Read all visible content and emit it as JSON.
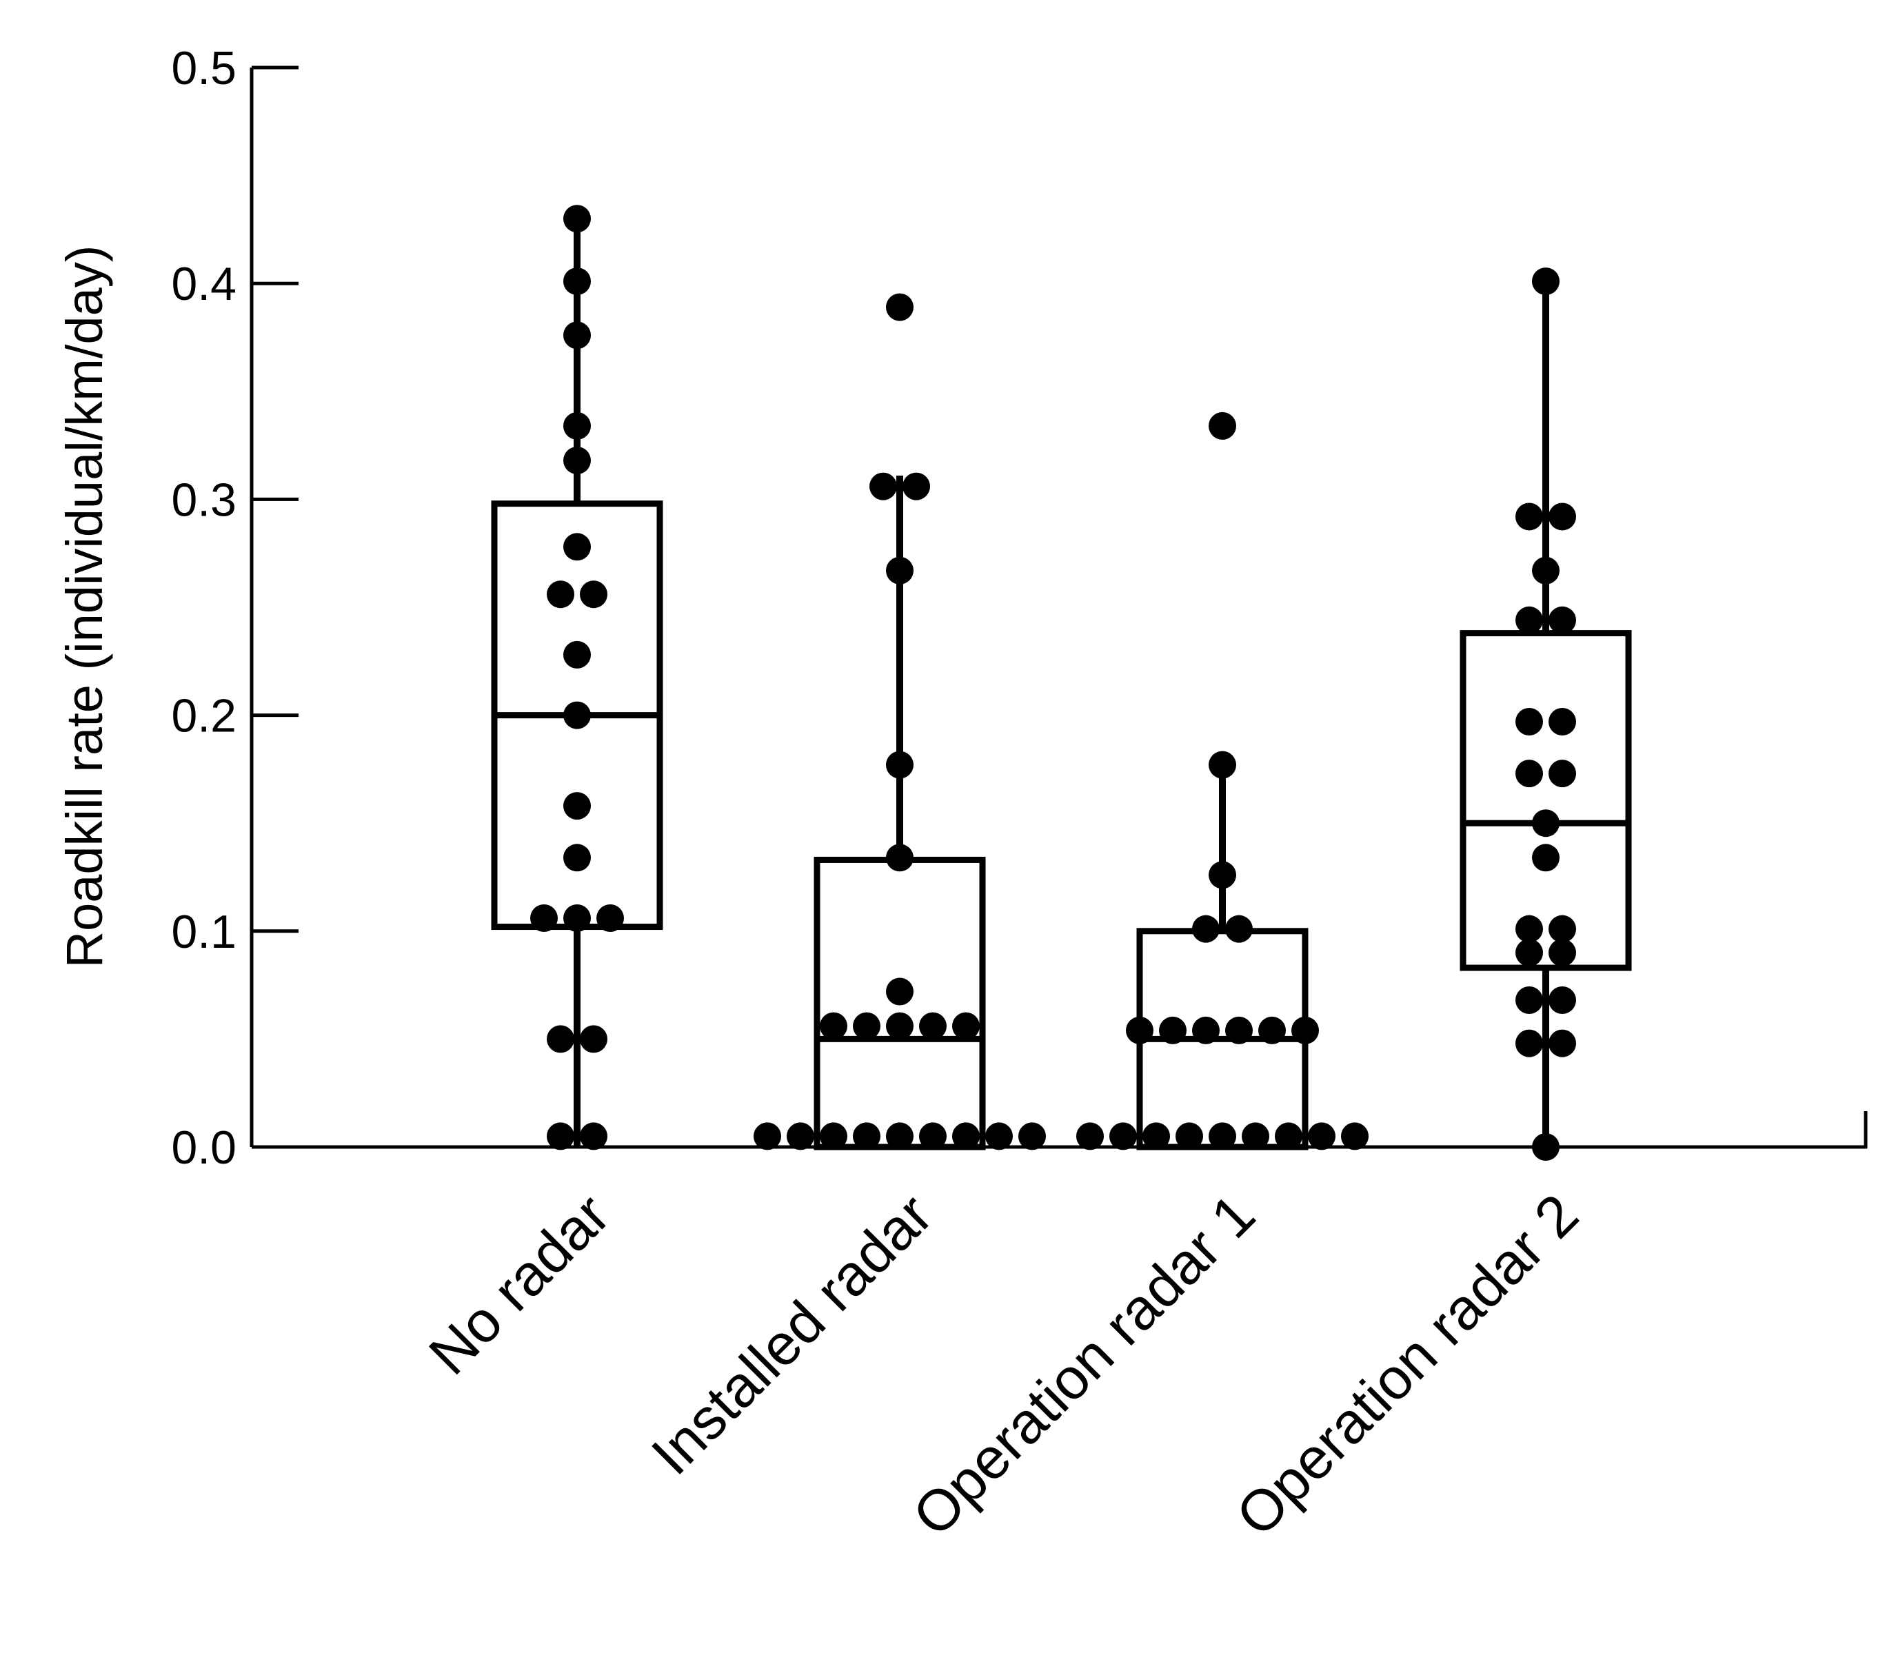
{
  "chart_data": {
    "type": "box",
    "title": "",
    "xlabel": "",
    "ylabel": "Roadkill rate (individual/km/day)",
    "ylim": [
      0,
      0.5
    ],
    "yticks": [
      "0.0",
      "0.1",
      "0.2",
      "0.3",
      "0.4",
      "0.5"
    ],
    "grid": false,
    "legend": "none",
    "colors": {
      "stroke": "#000000",
      "points": "#000000",
      "background": "#ffffff"
    },
    "categories": [
      "No radar",
      "Installed radar",
      "Operation radar 1",
      "Operation radar 2"
    ],
    "boxes": [
      {
        "whisker_low": 0.0,
        "q1": 0.102,
        "median": 0.2,
        "q3": 0.298,
        "whisker_high": 0.43
      },
      {
        "whisker_low": 0.0,
        "q1": 0.0,
        "median": 0.05,
        "q3": 0.133,
        "whisker_high": 0.311
      },
      {
        "whisker_low": 0.0,
        "q1": 0.0,
        "median": 0.05,
        "q3": 0.1,
        "whisker_high": 0.176
      },
      {
        "whisker_low": 0.0,
        "q1": 0.083,
        "median": 0.15,
        "q3": 0.238,
        "whisker_high": 0.4
      }
    ],
    "points": [
      [
        0.43,
        0.401,
        0.376,
        0.334,
        0.318,
        0.278,
        0.256,
        0.256,
        0.228,
        0.2,
        0.158,
        0.134,
        0.106,
        0.106,
        0.106,
        0.05,
        0.05,
        0.005,
        0.005
      ],
      [
        0.389,
        0.306,
        0.306,
        0.267,
        0.177,
        0.134,
        0.072,
        0.056,
        0.056,
        0.056,
        0.056,
        0.056,
        0.005,
        0.005,
        0.005,
        0.005,
        0.005,
        0.005,
        0.005,
        0.005,
        0.005
      ],
      [
        0.334,
        0.177,
        0.126,
        0.101,
        0.101,
        0.054,
        0.054,
        0.054,
        0.054,
        0.054,
        0.054,
        0.005,
        0.005,
        0.005,
        0.005,
        0.005,
        0.005,
        0.005,
        0.005,
        0.005
      ],
      [
        0.401,
        0.292,
        0.292,
        0.267,
        0.244,
        0.244,
        0.197,
        0.197,
        0.173,
        0.173,
        0.15,
        0.134,
        0.101,
        0.101,
        0.09,
        0.09,
        0.068,
        0.068,
        0.048,
        0.048,
        0.0
      ]
    ]
  }
}
